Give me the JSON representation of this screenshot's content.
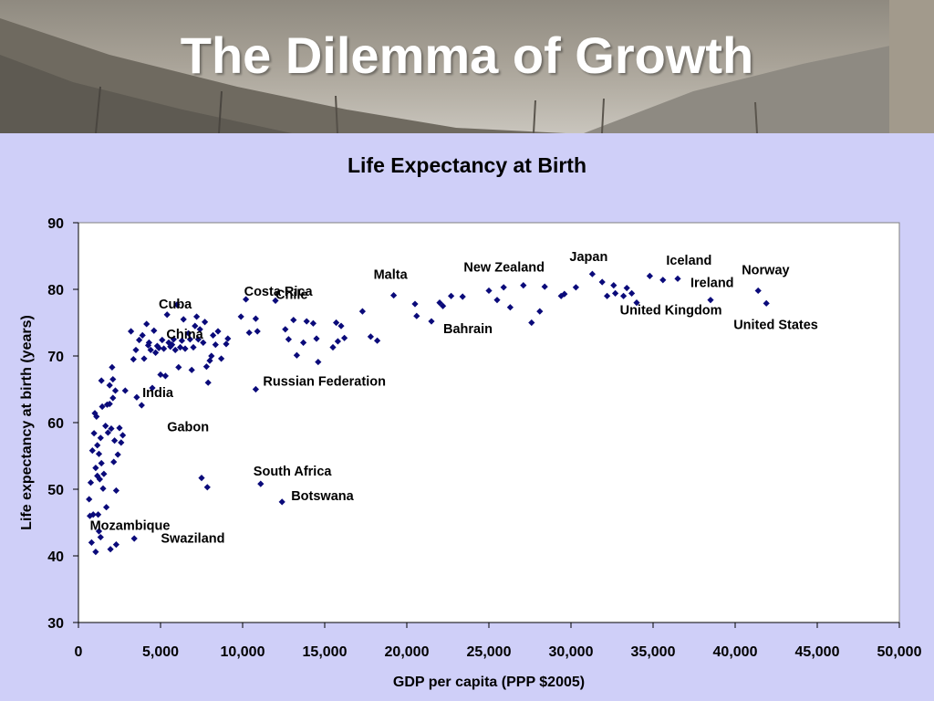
{
  "slide": {
    "title": "The Dilemma of Growth"
  },
  "colors": {
    "background": "#cfcff8",
    "marker": "#0a0a7a",
    "plot_background": "#ffffff"
  },
  "chart_data": {
    "type": "scatter",
    "title": "Life Expectancy at Birth",
    "xlabel": "GDP per capita (PPP $2005)",
    "ylabel": "Life expectancy at birth (years)",
    "xlim": [
      0,
      50000
    ],
    "ylim": [
      30,
      90
    ],
    "xticks": [
      0,
      5000,
      10000,
      15000,
      20000,
      25000,
      30000,
      35000,
      40000,
      45000,
      50000
    ],
    "xtick_labels": [
      "0",
      "5,000",
      "10,000",
      "15,000",
      "20,000",
      "25,000",
      "30,000",
      "35,000",
      "40,000",
      "45,000",
      "50,000"
    ],
    "yticks": [
      30,
      40,
      50,
      60,
      70,
      80,
      90
    ],
    "ytick_labels": [
      "30",
      "40",
      "50",
      "60",
      "70",
      "80",
      "90"
    ],
    "grid": false,
    "annotations": [
      {
        "text": "Cuba",
        "x": 6000,
        "y": 77.7
      },
      {
        "text": "Costa Rica",
        "x": 10200,
        "y": 78.5
      },
      {
        "text": "Chile",
        "x": 12000,
        "y": 78.3
      },
      {
        "text": "China",
        "x": 6800,
        "y": 72.5
      },
      {
        "text": "India",
        "x": 3450,
        "y": 63.7
      },
      {
        "text": "Malta",
        "x": 19200,
        "y": 79.1
      },
      {
        "text": "New Zealand",
        "x": 24800,
        "y": 80.2
      },
      {
        "text": "Bahrain",
        "x": 22000,
        "y": 75.6
      },
      {
        "text": "Japan",
        "x": 31300,
        "y": 82.3
      },
      {
        "text": "Iceland",
        "x": 35800,
        "y": 81.5
      },
      {
        "text": "Ireland",
        "x": 38500,
        "y": 78.4
      },
      {
        "text": "Norway",
        "x": 41400,
        "y": 79.8
      },
      {
        "text": "United Kingdom",
        "x": 33200,
        "y": 79.0
      },
      {
        "text": "United States",
        "x": 41900,
        "y": 77.9
      },
      {
        "text": "Russian Federation",
        "x": 10800,
        "y": 65.0
      },
      {
        "text": "Gabon",
        "x": 6900,
        "y": 56.2
      },
      {
        "text": "South Africa",
        "x": 11100,
        "y": 50.8
      },
      {
        "text": "Botswana",
        "x": 12400,
        "y": 48.1
      },
      {
        "text": "Mozambique",
        "x": 1200,
        "y": 46.2
      },
      {
        "text": "Swaziland",
        "x": 4800,
        "y": 40.9
      }
    ],
    "points": [
      {
        "x": 650,
        "y": 48.5
      },
      {
        "x": 700,
        "y": 46.0
      },
      {
        "x": 750,
        "y": 51.0
      },
      {
        "x": 800,
        "y": 42.0
      },
      {
        "x": 850,
        "y": 55.8
      },
      {
        "x": 900,
        "y": 46.2
      },
      {
        "x": 950,
        "y": 58.4
      },
      {
        "x": 1000,
        "y": 61.4
      },
      {
        "x": 1050,
        "y": 40.6
      },
      {
        "x": 1050,
        "y": 53.2
      },
      {
        "x": 1100,
        "y": 60.9
      },
      {
        "x": 1150,
        "y": 56.6
      },
      {
        "x": 1150,
        "y": 52.0
      },
      {
        "x": 1200,
        "y": 46.2
      },
      {
        "x": 1250,
        "y": 43.7
      },
      {
        "x": 1250,
        "y": 55.3
      },
      {
        "x": 1300,
        "y": 51.5
      },
      {
        "x": 1350,
        "y": 57.7
      },
      {
        "x": 1350,
        "y": 42.8
      },
      {
        "x": 1400,
        "y": 53.9
      },
      {
        "x": 1400,
        "y": 66.3
      },
      {
        "x": 1450,
        "y": 62.4
      },
      {
        "x": 1500,
        "y": 50.1
      },
      {
        "x": 1550,
        "y": 52.3
      },
      {
        "x": 1650,
        "y": 59.5
      },
      {
        "x": 1700,
        "y": 47.3
      },
      {
        "x": 1750,
        "y": 62.7
      },
      {
        "x": 1800,
        "y": 58.5
      },
      {
        "x": 1900,
        "y": 65.6
      },
      {
        "x": 1900,
        "y": 62.8
      },
      {
        "x": 1950,
        "y": 41.0
      },
      {
        "x": 2000,
        "y": 59.1
      },
      {
        "x": 2050,
        "y": 68.3
      },
      {
        "x": 2100,
        "y": 66.5
      },
      {
        "x": 2100,
        "y": 63.7
      },
      {
        "x": 2150,
        "y": 54.1
      },
      {
        "x": 2200,
        "y": 57.3
      },
      {
        "x": 2250,
        "y": 64.8
      },
      {
        "x": 2300,
        "y": 49.8
      },
      {
        "x": 2300,
        "y": 41.7
      },
      {
        "x": 2400,
        "y": 55.2
      },
      {
        "x": 2500,
        "y": 59.2
      },
      {
        "x": 2600,
        "y": 57.0
      },
      {
        "x": 2700,
        "y": 58.1
      },
      {
        "x": 2850,
        "y": 64.8
      },
      {
        "x": 3200,
        "y": 73.7
      },
      {
        "x": 3350,
        "y": 69.5
      },
      {
        "x": 3400,
        "y": 42.6
      },
      {
        "x": 3500,
        "y": 70.9
      },
      {
        "x": 3550,
        "y": 63.8
      },
      {
        "x": 3700,
        "y": 72.4
      },
      {
        "x": 3850,
        "y": 62.6
      },
      {
        "x": 3900,
        "y": 73.1
      },
      {
        "x": 4000,
        "y": 69.6
      },
      {
        "x": 4150,
        "y": 74.8
      },
      {
        "x": 4250,
        "y": 71.6
      },
      {
        "x": 4300,
        "y": 72.0
      },
      {
        "x": 4400,
        "y": 70.9
      },
      {
        "x": 4500,
        "y": 65.2
      },
      {
        "x": 4600,
        "y": 73.8
      },
      {
        "x": 4700,
        "y": 70.5
      },
      {
        "x": 4800,
        "y": 71.5
      },
      {
        "x": 4900,
        "y": 71.2
      },
      {
        "x": 5000,
        "y": 67.2
      },
      {
        "x": 5100,
        "y": 72.4
      },
      {
        "x": 5200,
        "y": 71.1
      },
      {
        "x": 5300,
        "y": 67.0
      },
      {
        "x": 5400,
        "y": 76.2
      },
      {
        "x": 5500,
        "y": 72.0
      },
      {
        "x": 5600,
        "y": 71.4
      },
      {
        "x": 5700,
        "y": 71.7
      },
      {
        "x": 5800,
        "y": 72.5
      },
      {
        "x": 5900,
        "y": 70.9
      },
      {
        "x": 6000,
        "y": 77.7
      },
      {
        "x": 6100,
        "y": 68.3
      },
      {
        "x": 6200,
        "y": 71.3
      },
      {
        "x": 6300,
        "y": 72.3
      },
      {
        "x": 6400,
        "y": 75.5
      },
      {
        "x": 6500,
        "y": 71.1
      },
      {
        "x": 6700,
        "y": 73.4
      },
      {
        "x": 6800,
        "y": 72.5
      },
      {
        "x": 6900,
        "y": 67.9
      },
      {
        "x": 7000,
        "y": 71.3
      },
      {
        "x": 7100,
        "y": 74.5
      },
      {
        "x": 7200,
        "y": 75.9
      },
      {
        "x": 7300,
        "y": 72.5
      },
      {
        "x": 7400,
        "y": 74.0
      },
      {
        "x": 7500,
        "y": 51.7
      },
      {
        "x": 7600,
        "y": 72.0
      },
      {
        "x": 7700,
        "y": 75.1
      },
      {
        "x": 7800,
        "y": 68.4
      },
      {
        "x": 7850,
        "y": 50.3
      },
      {
        "x": 7900,
        "y": 66.0
      },
      {
        "x": 8000,
        "y": 69.3
      },
      {
        "x": 8100,
        "y": 70.0
      },
      {
        "x": 8200,
        "y": 73.1
      },
      {
        "x": 8350,
        "y": 71.7
      },
      {
        "x": 8500,
        "y": 73.7
      },
      {
        "x": 8700,
        "y": 69.6
      },
      {
        "x": 9000,
        "y": 71.8
      },
      {
        "x": 9100,
        "y": 72.6
      },
      {
        "x": 9900,
        "y": 75.9
      },
      {
        "x": 10200,
        "y": 78.5
      },
      {
        "x": 10400,
        "y": 73.5
      },
      {
        "x": 10800,
        "y": 75.6
      },
      {
        "x": 10800,
        "y": 65.0
      },
      {
        "x": 10900,
        "y": 73.7
      },
      {
        "x": 11100,
        "y": 50.8
      },
      {
        "x": 12000,
        "y": 78.3
      },
      {
        "x": 12400,
        "y": 48.1
      },
      {
        "x": 12600,
        "y": 74.0
      },
      {
        "x": 12800,
        "y": 72.5
      },
      {
        "x": 13100,
        "y": 75.4
      },
      {
        "x": 13300,
        "y": 70.1
      },
      {
        "x": 13700,
        "y": 72.0
      },
      {
        "x": 13900,
        "y": 75.2
      },
      {
        "x": 14300,
        "y": 74.9
      },
      {
        "x": 14500,
        "y": 72.6
      },
      {
        "x": 14600,
        "y": 69.1
      },
      {
        "x": 15500,
        "y": 71.3
      },
      {
        "x": 15700,
        "y": 75.0
      },
      {
        "x": 15800,
        "y": 72.2
      },
      {
        "x": 16000,
        "y": 74.5
      },
      {
        "x": 16200,
        "y": 72.7
      },
      {
        "x": 17300,
        "y": 76.7
      },
      {
        "x": 17800,
        "y": 72.9
      },
      {
        "x": 18200,
        "y": 72.3
      },
      {
        "x": 19200,
        "y": 79.1
      },
      {
        "x": 20500,
        "y": 77.8
      },
      {
        "x": 20600,
        "y": 76.0
      },
      {
        "x": 21500,
        "y": 75.2
      },
      {
        "x": 22000,
        "y": 78.0
      },
      {
        "x": 22200,
        "y": 77.5
      },
      {
        "x": 22700,
        "y": 79.0
      },
      {
        "x": 23400,
        "y": 78.9
      },
      {
        "x": 25000,
        "y": 79.8
      },
      {
        "x": 25500,
        "y": 78.4
      },
      {
        "x": 25900,
        "y": 80.3
      },
      {
        "x": 26300,
        "y": 77.3
      },
      {
        "x": 27100,
        "y": 80.6
      },
      {
        "x": 27600,
        "y": 75.0
      },
      {
        "x": 28100,
        "y": 76.7
      },
      {
        "x": 28400,
        "y": 80.4
      },
      {
        "x": 29400,
        "y": 79.0
      },
      {
        "x": 29600,
        "y": 79.3
      },
      {
        "x": 30300,
        "y": 80.3
      },
      {
        "x": 31300,
        "y": 82.3
      },
      {
        "x": 31900,
        "y": 81.1
      },
      {
        "x": 32200,
        "y": 79.0
      },
      {
        "x": 32600,
        "y": 80.6
      },
      {
        "x": 32700,
        "y": 79.4
      },
      {
        "x": 33200,
        "y": 79.0
      },
      {
        "x": 33400,
        "y": 80.2
      },
      {
        "x": 33700,
        "y": 79.4
      },
      {
        "x": 34000,
        "y": 78.0
      },
      {
        "x": 34800,
        "y": 82.0
      },
      {
        "x": 35600,
        "y": 81.4
      },
      {
        "x": 36500,
        "y": 81.6
      },
      {
        "x": 38500,
        "y": 78.4
      },
      {
        "x": 41400,
        "y": 79.8
      },
      {
        "x": 41900,
        "y": 77.9
      }
    ]
  }
}
